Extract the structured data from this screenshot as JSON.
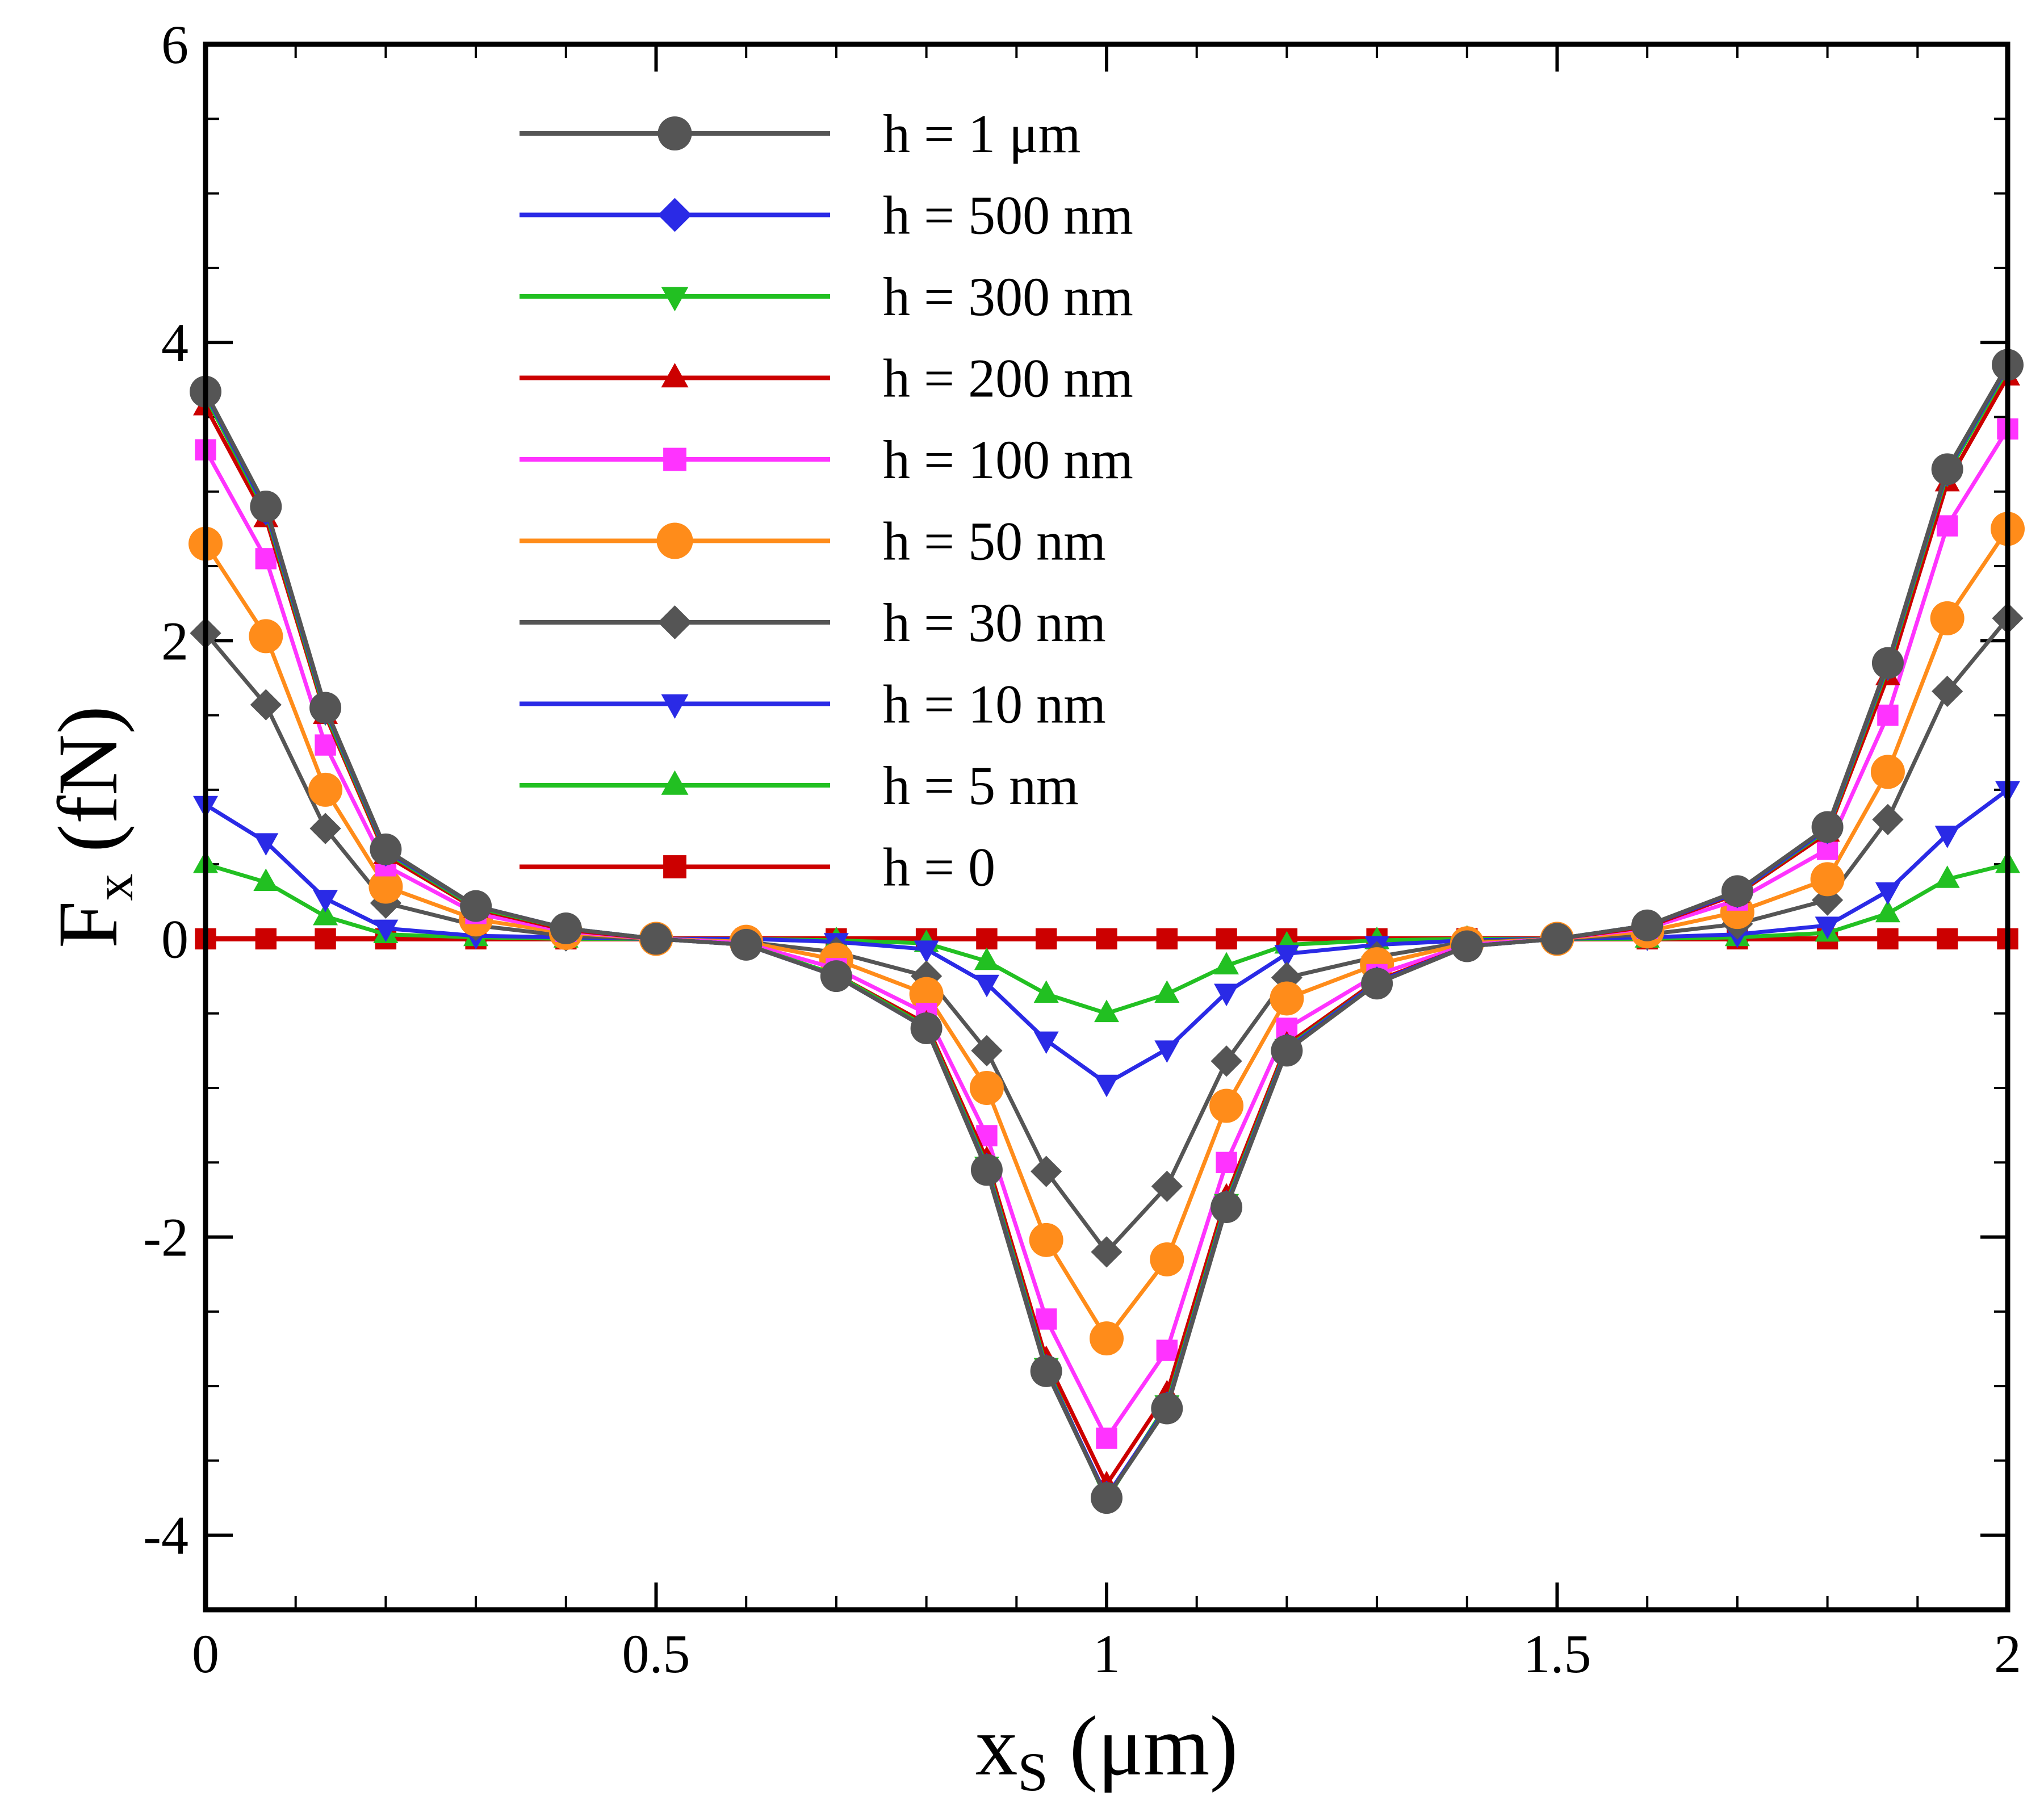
{
  "chart_data": {
    "type": "line",
    "title": "",
    "xlabel": {
      "main": "x",
      "sub": "S",
      "unit": " (μm)"
    },
    "ylabel": {
      "main": "F",
      "sub": "x",
      "unit": " (fN)"
    },
    "xlim": [
      0,
      2
    ],
    "ylim": [
      -4.5,
      6
    ],
    "x_ticks": [
      {
        "value": 0,
        "label": "0"
      },
      {
        "value": 0.5,
        "label": "0.5"
      },
      {
        "value": 1,
        "label": "1"
      },
      {
        "value": 1.5,
        "label": "1.5"
      },
      {
        "value": 2,
        "label": "2"
      }
    ],
    "y_ticks": [
      {
        "value": -4,
        "label": "-4"
      },
      {
        "value": -2,
        "label": "-2"
      },
      {
        "value": 0,
        "label": "0"
      },
      {
        "value": 2,
        "label": "2"
      },
      {
        "value": 4,
        "label": "4"
      },
      {
        "value": 6,
        "label": "6"
      }
    ],
    "x_minor_step": 0.1,
    "y_minor_step": 0.5,
    "grid": false,
    "legend_position": "top-center",
    "x": [
      0,
      0.067,
      0.133,
      0.2,
      0.3,
      0.4,
      0.5,
      0.6,
      0.7,
      0.8,
      0.867,
      0.933,
      1.0,
      1.067,
      1.133,
      1.2,
      1.3,
      1.4,
      1.5,
      1.6,
      1.7,
      1.8,
      1.867,
      1.933,
      2.0
    ],
    "series": [
      {
        "name": "h = 1 μm",
        "color": "#555555",
        "marker": "circle",
        "values": [
          3.67,
          2.9,
          1.55,
          0.6,
          0.22,
          0.07,
          0,
          -0.04,
          -0.25,
          -0.6,
          -1.55,
          -2.9,
          -3.75,
          -3.15,
          -1.8,
          -0.75,
          -0.3,
          -0.05,
          0,
          0.09,
          0.32,
          0.75,
          1.85,
          3.15,
          3.85
        ]
      },
      {
        "name": "h = 500 nm",
        "color": "#2a2ae6",
        "marker": "diamond",
        "values": [
          3.66,
          2.88,
          1.54,
          0.59,
          0.22,
          0.07,
          0,
          -0.04,
          -0.25,
          -0.6,
          -1.54,
          -2.89,
          -3.74,
          -3.14,
          -1.79,
          -0.74,
          -0.29,
          -0.05,
          0,
          0.09,
          0.31,
          0.74,
          1.84,
          3.14,
          3.84
        ]
      },
      {
        "name": "h = 300 nm",
        "color": "#22c022",
        "marker": "triangle-down",
        "values": [
          3.64,
          2.86,
          1.52,
          0.58,
          0.21,
          0.07,
          0,
          -0.04,
          -0.24,
          -0.59,
          -1.52,
          -2.87,
          -3.76,
          -3.12,
          -1.77,
          -0.73,
          -0.29,
          -0.05,
          0,
          0.09,
          0.31,
          0.73,
          1.82,
          3.12,
          3.82
        ]
      },
      {
        "name": "h = 200 nm",
        "color": "#cc0000",
        "marker": "triangle-up",
        "values": [
          3.57,
          2.82,
          1.5,
          0.56,
          0.2,
          0.06,
          0,
          -0.04,
          -0.24,
          -0.57,
          -1.48,
          -2.82,
          -3.66,
          -3.05,
          -1.73,
          -0.71,
          -0.28,
          -0.05,
          0,
          0.08,
          0.3,
          0.71,
          1.76,
          3.06,
          3.77
        ]
      },
      {
        "name": "h = 100 nm",
        "color": "#ff33ff",
        "marker": "square",
        "values": [
          3.28,
          2.55,
          1.3,
          0.49,
          0.17,
          0.05,
          0,
          -0.03,
          -0.2,
          -0.5,
          -1.32,
          -2.55,
          -3.35,
          -2.76,
          -1.5,
          -0.6,
          -0.24,
          -0.04,
          0,
          0.07,
          0.26,
          0.6,
          1.5,
          2.77,
          3.42
        ]
      },
      {
        "name": "h = 50 nm",
        "color": "#ff8c1a",
        "marker": "circle",
        "values": [
          2.65,
          2.03,
          1.0,
          0.35,
          0.13,
          0.04,
          0,
          -0.02,
          -0.14,
          -0.37,
          -1.0,
          -2.02,
          -2.68,
          -2.15,
          -1.12,
          -0.4,
          -0.17,
          -0.03,
          0,
          0.05,
          0.18,
          0.4,
          1.12,
          2.15,
          2.75
        ]
      },
      {
        "name": "h = 30 nm",
        "color": "#555555",
        "marker": "diamond",
        "values": [
          2.05,
          1.57,
          0.74,
          0.24,
          0.09,
          0.02,
          0,
          -0.02,
          -0.09,
          -0.25,
          -0.75,
          -1.56,
          -2.1,
          -1.66,
          -0.82,
          -0.26,
          -0.12,
          -0.02,
          0,
          0.03,
          0.1,
          0.26,
          0.8,
          1.66,
          2.15
        ]
      },
      {
        "name": "h = 10 nm",
        "color": "#2a2ae6",
        "marker": "triangle-down",
        "values": [
          0.9,
          0.65,
          0.27,
          0.07,
          0.02,
          0.01,
          0,
          0,
          -0.02,
          -0.07,
          -0.3,
          -0.68,
          -0.97,
          -0.74,
          -0.36,
          -0.1,
          -0.04,
          -0.01,
          0,
          0.01,
          0.03,
          0.09,
          0.32,
          0.7,
          1.0
        ]
      },
      {
        "name": "h = 5 nm",
        "color": "#22c022",
        "marker": "triangle-up",
        "values": [
          0.5,
          0.38,
          0.15,
          0.03,
          0.01,
          0,
          0,
          0,
          -0.01,
          -0.03,
          -0.15,
          -0.37,
          -0.5,
          -0.37,
          -0.18,
          -0.04,
          -0.01,
          0,
          0,
          0,
          0.01,
          0.04,
          0.17,
          0.4,
          0.5
        ]
      },
      {
        "name": "h = 0",
        "color": "#cc0000",
        "marker": "square",
        "values": [
          0,
          0,
          0,
          0,
          0,
          0,
          0,
          0,
          0,
          0,
          0,
          0,
          0,
          0,
          0,
          0,
          0,
          0,
          0,
          0,
          0,
          0,
          0,
          0,
          0
        ]
      }
    ]
  }
}
